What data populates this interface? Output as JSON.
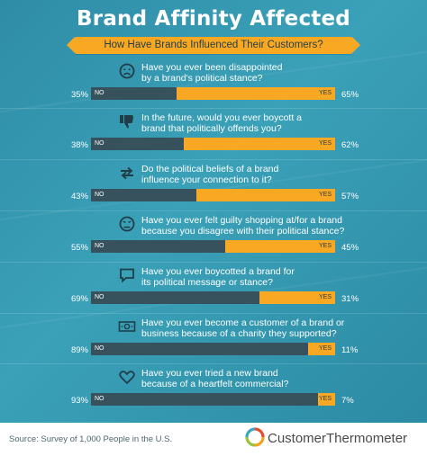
{
  "header": {
    "title": "Brand Affinity Affected",
    "subtitle": "How Have Brands Influenced Their Customers?"
  },
  "labels": {
    "no": "NO",
    "yes": "YES"
  },
  "questions": [
    {
      "icon": "sad-face-icon",
      "text": "Have you ever been disappointed\nby a brand's political stance?",
      "no": 35,
      "yes": 65,
      "no_label": "35%",
      "yes_label": "65%"
    },
    {
      "icon": "thumbs-down-icon",
      "text": "In the future, would you ever boycott a\nbrand that politically offends you?",
      "no": 38,
      "yes": 62,
      "no_label": "38%",
      "yes_label": "62%"
    },
    {
      "icon": "exchange-arrows-icon",
      "text": "Do the political beliefs of a brand\ninfluence your connection to it?",
      "no": 43,
      "yes": 57,
      "no_label": "43%",
      "yes_label": "57%"
    },
    {
      "icon": "guilty-face-icon",
      "text": "Have you ever felt guilty shopping at/for a brand\nbecause you disagree with their political stance?",
      "no": 55,
      "yes": 45,
      "no_label": "55%",
      "yes_label": "45%"
    },
    {
      "icon": "speech-bubble-icon",
      "text": "Have you ever boycotted a brand for\nits political message or stance?",
      "no": 69,
      "yes": 31,
      "no_label": "69%",
      "yes_label": "31%"
    },
    {
      "icon": "money-icon",
      "text": "Have you ever become a customer of a brand or\nbusiness because of a charity they supported?",
      "no": 89,
      "yes": 11,
      "no_label": "89%",
      "yes_label": "11%"
    },
    {
      "icon": "heart-icon",
      "text": "Have you ever tried a new brand\nbecause of a heartfelt commercial?",
      "no": 93,
      "yes": 7,
      "no_label": "93%",
      "yes_label": "7%"
    }
  ],
  "footer": {
    "source": "Source: Survey of 1,000 People in the U.S.",
    "logo_text": "CustomerThermometer"
  },
  "colors": {
    "panel": "#3399b2",
    "no_bar": "#38525d",
    "yes_bar": "#f8a823",
    "icon": "#1f3e48"
  },
  "chart_data": {
    "type": "bar",
    "title": "Brand Affinity Affected",
    "subtitle": "How Have Brands Influenced Their Customers?",
    "orientation": "horizontal-stacked",
    "categories": [
      "Have you ever been disappointed by a brand's political stance?",
      "In the future, would you ever boycott a brand that politically offends you?",
      "Do the political beliefs of a brand influence your connection to it?",
      "Have you ever felt guilty shopping at/for a brand because you disagree with their political stance?",
      "Have you ever boycotted a brand for its political message or stance?",
      "Have you ever become a customer of a brand or business because of a charity they supported?",
      "Have you ever tried a new brand because of a heartfelt commercial?"
    ],
    "series": [
      {
        "name": "NO",
        "values": [
          35,
          38,
          43,
          55,
          69,
          89,
          93
        ]
      },
      {
        "name": "YES",
        "values": [
          65,
          62,
          57,
          45,
          31,
          11,
          7
        ]
      }
    ],
    "unit": "%",
    "ylim": [
      0,
      100
    ]
  }
}
